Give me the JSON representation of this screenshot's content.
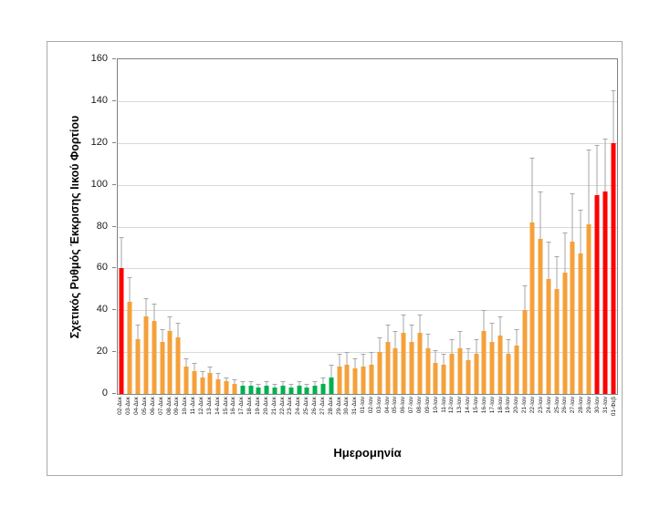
{
  "figure": {
    "background": "#FFFFFF",
    "border_color": "#A9A9A9"
  },
  "chart_data": {
    "type": "bar",
    "title": "",
    "xlabel": "Ημερομηνία",
    "ylabel": "Σχετικός Ρυθμός Έκκρισης Ιικού Φορτίου",
    "ylim": [
      0,
      160
    ],
    "yticks": [
      0,
      20,
      40,
      60,
      80,
      100,
      120,
      140,
      160
    ],
    "grid": true,
    "legend": "none",
    "error_bars": "plus-only",
    "error_color": "#A6A6A6",
    "gridline_color": "#D9D9D9",
    "color_map": {
      "r": "#FF0000",
      "o": "#F4A13B",
      "g": "#00B050"
    },
    "color_legend_meaning": {
      "r": "red-bar",
      "o": "orange-bar",
      "g": "green-bar"
    },
    "bars": [
      {
        "d": "02-Δεκ",
        "v": 60,
        "u": 75,
        "c": "r"
      },
      {
        "d": "03-Δεκ",
        "v": 44,
        "u": 56,
        "c": "o"
      },
      {
        "d": "04-Δεκ",
        "v": 26,
        "u": 33,
        "c": "o"
      },
      {
        "d": "05-Δεκ",
        "v": 37,
        "u": 46,
        "c": "o"
      },
      {
        "d": "06-Δεκ",
        "v": 35,
        "u": 43,
        "c": "o"
      },
      {
        "d": "07-Δεκ",
        "v": 25,
        "u": 31,
        "c": "o"
      },
      {
        "d": "08-Δεκ",
        "v": 30,
        "u": 37,
        "c": "o"
      },
      {
        "d": "09-Δεκ",
        "v": 27,
        "u": 34,
        "c": "o"
      },
      {
        "d": "10-Δεκ",
        "v": 13,
        "u": 17,
        "c": "o"
      },
      {
        "d": "11-Δεκ",
        "v": 11,
        "u": 15,
        "c": "o"
      },
      {
        "d": "12-Δεκ",
        "v": 8,
        "u": 11,
        "c": "o"
      },
      {
        "d": "13-Δεκ",
        "v": 10,
        "u": 13,
        "c": "o"
      },
      {
        "d": "14-Δεκ",
        "v": 7,
        "u": 10,
        "c": "o"
      },
      {
        "d": "15-Δεκ",
        "v": 6,
        "u": 8,
        "c": "o"
      },
      {
        "d": "16-Δεκ",
        "v": 5,
        "u": 7,
        "c": "o"
      },
      {
        "d": "17-Δεκ",
        "v": 4,
        "u": 6,
        "c": "g"
      },
      {
        "d": "18-Δεκ",
        "v": 4,
        "u": 6,
        "c": "g"
      },
      {
        "d": "19-Δεκ",
        "v": 3,
        "u": 5,
        "c": "g"
      },
      {
        "d": "20-Δεκ",
        "v": 4,
        "u": 6,
        "c": "g"
      },
      {
        "d": "21-Δεκ",
        "v": 3,
        "u": 5,
        "c": "g"
      },
      {
        "d": "22-Δεκ",
        "v": 4,
        "u": 6,
        "c": "g"
      },
      {
        "d": "23-Δεκ",
        "v": 3,
        "u": 5,
        "c": "g"
      },
      {
        "d": "24-Δεκ",
        "v": 4,
        "u": 6,
        "c": "g"
      },
      {
        "d": "25-Δεκ",
        "v": 3,
        "u": 5,
        "c": "g"
      },
      {
        "d": "26-Δεκ",
        "v": 4,
        "u": 6,
        "c": "g"
      },
      {
        "d": "27-Δεκ",
        "v": 5,
        "u": 8,
        "c": "g"
      },
      {
        "d": "28-Δεκ",
        "v": 8,
        "u": 14,
        "c": "g"
      },
      {
        "d": "29-Δεκ",
        "v": 13,
        "u": 19,
        "c": "o"
      },
      {
        "d": "30-Δεκ",
        "v": 14,
        "u": 20,
        "c": "o"
      },
      {
        "d": "31-Δεκ",
        "v": 12,
        "u": 17,
        "c": "o"
      },
      {
        "d": "01-Ιαν",
        "v": 13,
        "u": 19,
        "c": "o"
      },
      {
        "d": "02-Ιαν",
        "v": 14,
        "u": 20,
        "c": "o"
      },
      {
        "d": "03-Ιαν",
        "v": 20,
        "u": 27,
        "c": "o"
      },
      {
        "d": "04-Ιαν",
        "v": 25,
        "u": 33,
        "c": "o"
      },
      {
        "d": "05-Ιαν",
        "v": 22,
        "u": 30,
        "c": "o"
      },
      {
        "d": "06-Ιαν",
        "v": 29,
        "u": 38,
        "c": "o"
      },
      {
        "d": "07-Ιαν",
        "v": 25,
        "u": 33,
        "c": "o"
      },
      {
        "d": "08-Ιαν",
        "v": 29,
        "u": 38,
        "c": "o"
      },
      {
        "d": "09-Ιαν",
        "v": 22,
        "u": 29,
        "c": "o"
      },
      {
        "d": "10-Ιαν",
        "v": 15,
        "u": 21,
        "c": "o"
      },
      {
        "d": "11-Ιαν",
        "v": 14,
        "u": 19,
        "c": "o"
      },
      {
        "d": "12-Ιαν",
        "v": 19,
        "u": 26,
        "c": "o"
      },
      {
        "d": "13-Ιαν",
        "v": 22,
        "u": 30,
        "c": "o"
      },
      {
        "d": "14-Ιαν",
        "v": 16,
        "u": 22,
        "c": "o"
      },
      {
        "d": "15-Ιαν",
        "v": 19,
        "u": 26,
        "c": "o"
      },
      {
        "d": "16-Ιαν",
        "v": 30,
        "u": 40,
        "c": "o"
      },
      {
        "d": "17-Ιαν",
        "v": 25,
        "u": 34,
        "c": "o"
      },
      {
        "d": "18-Ιαν",
        "v": 28,
        "u": 37,
        "c": "o"
      },
      {
        "d": "19-Ιαν",
        "v": 19,
        "u": 26,
        "c": "o"
      },
      {
        "d": "20-Ιαν",
        "v": 23,
        "u": 31,
        "c": "o"
      },
      {
        "d": "21-Ιαν",
        "v": 40,
        "u": 52,
        "c": "o"
      },
      {
        "d": "22-Ιαν",
        "v": 82,
        "u": 113,
        "c": "o"
      },
      {
        "d": "23-Ιαν",
        "v": 74,
        "u": 97,
        "c": "o"
      },
      {
        "d": "24-Ιαν",
        "v": 55,
        "u": 73,
        "c": "o"
      },
      {
        "d": "25-Ιαν",
        "v": 50,
        "u": 66,
        "c": "o"
      },
      {
        "d": "26-Ιαν",
        "v": 58,
        "u": 77,
        "c": "o"
      },
      {
        "d": "27-Ιαν",
        "v": 73,
        "u": 96,
        "c": "o"
      },
      {
        "d": "28-Ιαν",
        "v": 67,
        "u": 88,
        "c": "o"
      },
      {
        "d": "29-Ιαν",
        "v": 81,
        "u": 117,
        "c": "o"
      },
      {
        "d": "30-Ιαν",
        "v": 95,
        "u": 119,
        "c": "r"
      },
      {
        "d": "31-Ιαν",
        "v": 97,
        "u": 122,
        "c": "r"
      },
      {
        "d": "01-Φεβ",
        "v": 120,
        "u": 145,
        "c": "r"
      }
    ]
  }
}
